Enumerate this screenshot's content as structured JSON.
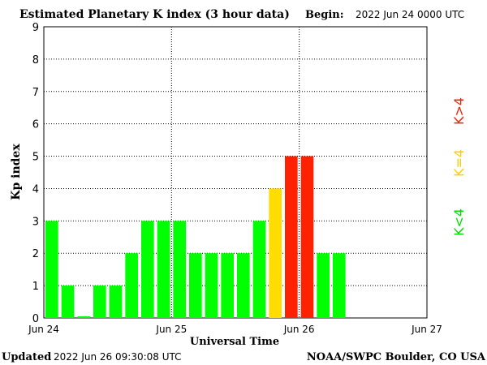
{
  "chart_data": {
    "type": "bar",
    "title": "Estimated Planetary K index (3 hour data)",
    "begin_label": "Begin:",
    "begin_value": "2022 Jun 24 0000 UTC",
    "xlabel": "Universal Time",
    "ylabel": "Kp index",
    "ylim": [
      0,
      9
    ],
    "y_ticks": [
      "0",
      "1",
      "2",
      "3",
      "4",
      "5",
      "6",
      "7",
      "8",
      "9"
    ],
    "x_ticks": [
      "Jun 24",
      "Jun 25",
      "Jun 26",
      "Jun 27"
    ],
    "bins_total": 24,
    "values": [
      3,
      1,
      0.05,
      1,
      1,
      2,
      3,
      3,
      3,
      2,
      2,
      2,
      2,
      3,
      4,
      5,
      5,
      2,
      2
    ],
    "colors": {
      "below_4": "#00ff00",
      "equal_4": "#ffdd00",
      "above_4": "#ff2200",
      "grid": "#000000",
      "text": "#000000"
    },
    "legend": {
      "below_label": "K<4",
      "equal_label": "K=4",
      "above_label": "K>4"
    },
    "updated_label": "Updated",
    "updated_value": "2022 Jun 26 09:30:08 UTC",
    "source_label": "NOAA/SWPC Boulder, CO USA",
    "grid": true
  }
}
